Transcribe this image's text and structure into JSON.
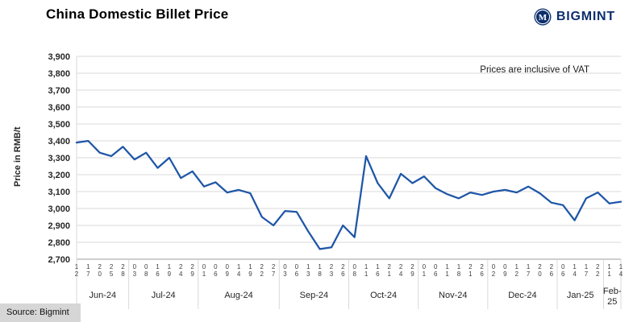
{
  "header": {
    "title": "China Domestic Billet Price",
    "brand": "BIGMINT"
  },
  "annotation": {
    "text": "Prices are inclusive of VAT"
  },
  "source": {
    "label": "Source: Bigmint"
  },
  "colors": {
    "line": "#1e56a7",
    "brand_navy": "#0d2f6e",
    "grid": "#d9d9d9",
    "axis": "#9c9c9c",
    "label": "#262626",
    "tick": "#404040"
  },
  "chart_data": {
    "type": "line",
    "title": "China Domestic Billet Price",
    "ylabel": "Price in RMB/t",
    "xlabel": "",
    "ylim": [
      2700,
      3900
    ],
    "ytick_step": 100,
    "grid": true,
    "legend_position": "none",
    "annotations": [
      "Prices are inclusive of VAT"
    ],
    "series_name": "China domestic billet price (RMB/t)",
    "months": [
      {
        "label": "Jun-24",
        "days": [
          "12",
          "17",
          "20",
          "25",
          "28"
        ],
        "values": [
          3390,
          3400,
          3330,
          3310,
          3365
        ]
      },
      {
        "label": "Jul-24",
        "days": [
          "03",
          "08",
          "16",
          "19",
          "24",
          "29"
        ],
        "values": [
          3290,
          3330,
          3240,
          3300,
          3180,
          3220
        ]
      },
      {
        "label": "Aug-24",
        "days": [
          "01",
          "06",
          "09",
          "14",
          "19",
          "22",
          "27"
        ],
        "values": [
          3130,
          3155,
          3095,
          3110,
          3090,
          2950,
          2900
        ]
      },
      {
        "label": "Sep-24",
        "days": [
          "03",
          "06",
          "13",
          "18",
          "23",
          "26"
        ],
        "values": [
          2985,
          2980,
          2865,
          2760,
          2770,
          2900
        ]
      },
      {
        "label": "Oct-24",
        "days": [
          "08",
          "11",
          "16",
          "21",
          "24",
          "29"
        ],
        "values": [
          2830,
          3310,
          3150,
          3060,
          3205,
          3150
        ]
      },
      {
        "label": "Nov-24",
        "days": [
          "01",
          "06",
          "11",
          "18",
          "21",
          "26"
        ],
        "values": [
          3190,
          3120,
          3085,
          3060,
          3095,
          3080
        ]
      },
      {
        "label": "Dec-24",
        "days": [
          "02",
          "09",
          "12",
          "17",
          "20",
          "26"
        ],
        "values": [
          3100,
          3110,
          3095,
          3130,
          3090,
          3035
        ]
      },
      {
        "label": "Jan-25",
        "days": [
          "06",
          "14",
          "17",
          "22"
        ],
        "values": [
          3020,
          2930,
          3060,
          3095
        ]
      },
      {
        "label": "Feb-25",
        "days": [
          "11",
          "14"
        ],
        "values": [
          3030,
          3040
        ],
        "wrap": true
      }
    ]
  }
}
